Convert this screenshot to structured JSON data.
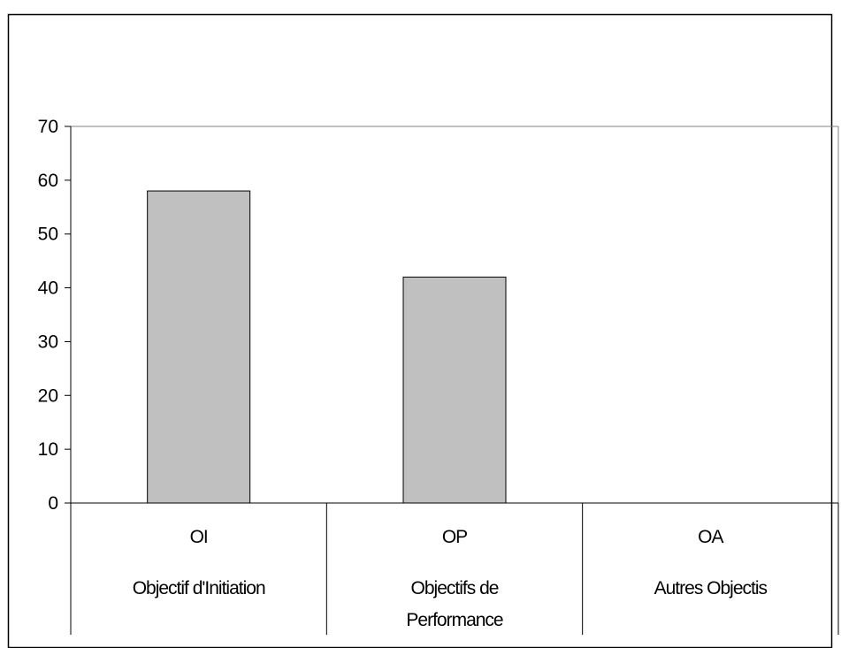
{
  "chart_data": {
    "type": "bar",
    "categories": [
      {
        "code": "OI",
        "label_lines": [
          "Objectif d'Initiation"
        ]
      },
      {
        "code": "OP",
        "label_lines": [
          "Objectifs de",
          "Performance"
        ]
      },
      {
        "code": "OA",
        "label_lines": [
          "Autres Objectis"
        ]
      }
    ],
    "values": [
      58,
      42,
      0
    ],
    "ylim": [
      0,
      70
    ],
    "yticks": [
      0,
      10,
      20,
      30,
      40,
      50,
      60,
      70
    ],
    "title": "",
    "xlabel": "",
    "ylabel": "",
    "grid": false,
    "legend": "none",
    "bar_color": "#c0c0c0",
    "bar_edge_color": "#000000"
  }
}
